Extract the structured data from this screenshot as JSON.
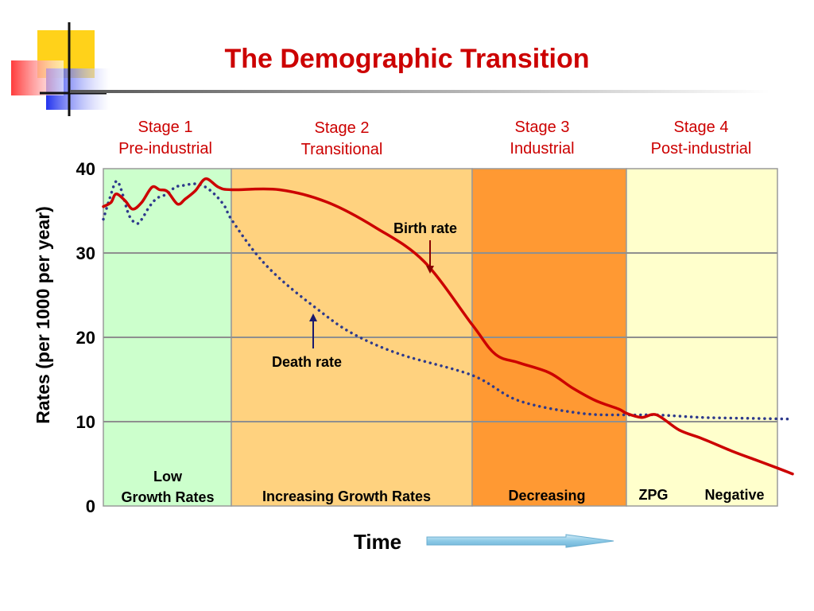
{
  "slide": {
    "title": "The Demographic Transition",
    "title_color": "#cc0000"
  },
  "chart_data": {
    "type": "line",
    "title": "The Demographic Transition",
    "xlabel": "Time",
    "ylabel": "Rates (per 1000 per year)",
    "ylim": [
      0,
      40
    ],
    "y_ticks": [
      0,
      10,
      20,
      30,
      40
    ],
    "grid": true,
    "stages": [
      {
        "name": "Stage 1",
        "subtitle": "Pre-industrial",
        "growth": "Low\nGrowth Rates",
        "range": [
          0,
          1
        ],
        "color": "#ccffcc"
      },
      {
        "name": "Stage 2",
        "subtitle": "Transitional",
        "growth": "Increasing Growth Rates",
        "range": [
          1,
          2
        ],
        "color": "#ffd27f"
      },
      {
        "name": "Stage 3",
        "subtitle": "Industrial",
        "growth": "Decreasing",
        "range": [
          2,
          3
        ],
        "color": "#ff9933"
      },
      {
        "name": "Stage 4",
        "subtitle": "Post-industrial",
        "growth_left": "ZPG",
        "growth_right": "Negative",
        "range": [
          3,
          4.1
        ],
        "color": "#ffffcc"
      }
    ],
    "series": [
      {
        "name": "Birth rate",
        "color": "#cc0000",
        "style": "solid",
        "x": [
          0,
          0.06,
          0.1,
          0.17,
          0.23,
          0.3,
          0.38,
          0.44,
          0.5,
          0.58,
          0.64,
          0.72,
          0.8,
          0.9,
          1.0,
          1.2,
          1.4,
          1.6,
          1.8,
          2.0,
          2.15,
          2.3,
          2.5,
          2.65,
          2.8,
          2.95,
          3.0,
          3.1,
          3.2,
          3.35,
          3.5,
          3.7,
          3.85,
          4.0,
          4.1
        ],
        "y": [
          35.5,
          36,
          37,
          36.2,
          35.2,
          36,
          37.8,
          37.5,
          37.3,
          35.8,
          36.4,
          37.4,
          38.8,
          37.8,
          37.5,
          37.5,
          36,
          33,
          29,
          21.5,
          18,
          17,
          15.8,
          14,
          12.5,
          11.5,
          11,
          10.5,
          10.8,
          9,
          8,
          6.5,
          5.5,
          4.5,
          3.8
        ]
      },
      {
        "name": "Death rate",
        "color": "#2e3a8c",
        "style": "dotted",
        "x": [
          0,
          0.05,
          0.1,
          0.14,
          0.2,
          0.26,
          0.3,
          0.36,
          0.42,
          0.5,
          0.56,
          0.62,
          0.72,
          0.8,
          0.88,
          0.95,
          1.0,
          1.1,
          1.2,
          1.35,
          1.5,
          1.7,
          2.0,
          2.3,
          2.7,
          3.0,
          3.2,
          3.5,
          3.8,
          4.1
        ],
        "y": [
          34,
          36.5,
          38.5,
          37.5,
          34.5,
          33.5,
          34,
          35.5,
          36.5,
          37,
          37.8,
          38,
          38.2,
          37.8,
          36.8,
          35.5,
          34,
          30,
          27,
          23.5,
          20.5,
          18,
          15.5,
          12.5,
          11,
          10.8,
          10.8,
          10.5,
          10.4,
          10.3
        ]
      }
    ],
    "annotations": [
      {
        "text": "Birth rate",
        "points_to": "Birth rate"
      },
      {
        "text": "Death rate",
        "points_to": "Death rate"
      }
    ]
  }
}
